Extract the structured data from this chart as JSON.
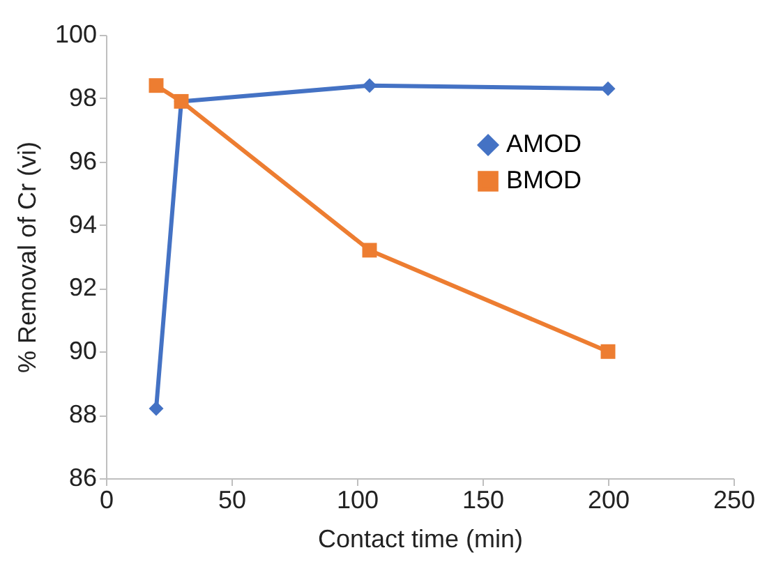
{
  "chart_data": {
    "type": "line",
    "xlabel": "Contact time (min)",
    "ylabel": "% Removal of Cr (vi)",
    "x": [
      20,
      30,
      105,
      200
    ],
    "series": [
      {
        "name": "AMOD",
        "color": "#4472c4",
        "marker": "diamond",
        "values": [
          88.2,
          97.9,
          98.4,
          98.3
        ]
      },
      {
        "name": "BMOD",
        "color": "#ed7d31",
        "marker": "square",
        "values": [
          98.4,
          97.9,
          93.2,
          90.0
        ]
      }
    ],
    "xlim": [
      0,
      250
    ],
    "xticks": [
      0,
      50,
      100,
      150,
      200,
      250
    ],
    "ylim": [
      86,
      100
    ],
    "yticks": [
      86,
      88,
      90,
      92,
      94,
      96,
      98,
      100
    ],
    "grid": false,
    "legend": "right",
    "line_style": "solid"
  }
}
